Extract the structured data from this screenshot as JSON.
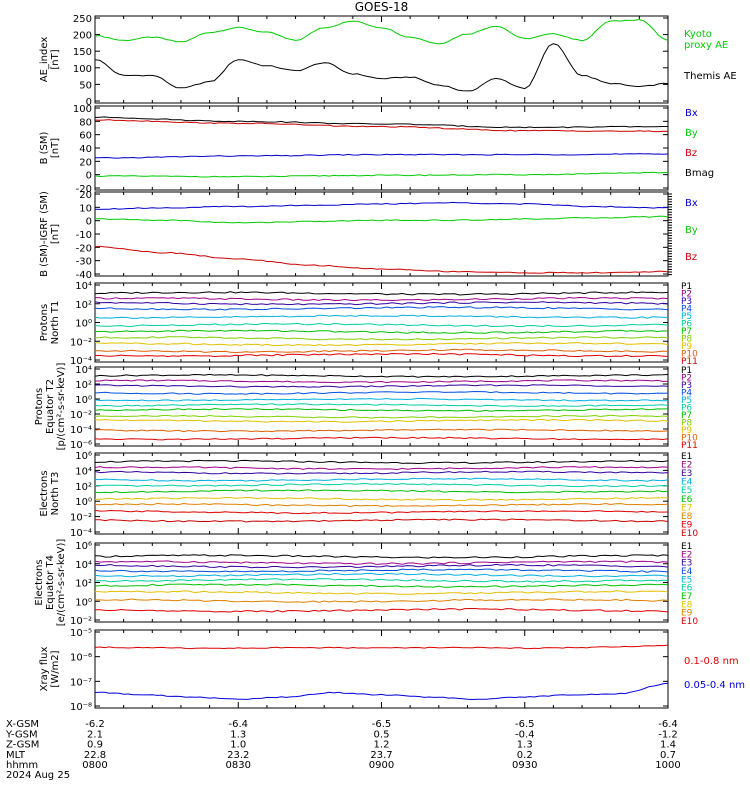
{
  "title": "GOES-18",
  "chart_data": [
    {
      "type": "line",
      "ylabel": [
        "AE_index",
        "[nT]"
      ],
      "yticks": [
        "250",
        "200",
        "150",
        "100",
        "50",
        "0"
      ],
      "ylim": [
        0,
        260
      ],
      "x": [
        "0800",
        "0806",
        "0812",
        "0818",
        "0824",
        "0830",
        "0836",
        "0842",
        "0848",
        "0854",
        "0900",
        "0906",
        "0912",
        "0918",
        "0924",
        "0930",
        "0936",
        "0942",
        "0948",
        "0954",
        "1000"
      ],
      "series": [
        {
          "name": "Kyoto proxy AE",
          "color": "#00cc00",
          "label_lines": [
            "Kyoto",
            "proxy AE"
          ],
          "values": [
            205,
            190,
            200,
            185,
            215,
            230,
            215,
            190,
            230,
            250,
            230,
            200,
            180,
            210,
            235,
            195,
            210,
            190,
            250,
            255,
            190
          ]
        },
        {
          "name": "Themis AE",
          "color": "#000000",
          "label_lines": [
            "Themis AE"
          ],
          "values": [
            130,
            80,
            80,
            40,
            60,
            130,
            110,
            95,
            120,
            85,
            70,
            75,
            50,
            30,
            70,
            40,
            180,
            80,
            55,
            45,
            55
          ]
        }
      ]
    },
    {
      "type": "line",
      "ylabel": [
        "B (SM)",
        "[nT]"
      ],
      "yticks": [
        "100",
        "80",
        "60",
        "40",
        "20",
        "0",
        "-20"
      ],
      "ylim": [
        -20,
        100
      ],
      "x": [
        "0800",
        "0830",
        "0900",
        "0930",
        "1000"
      ],
      "series": [
        {
          "name": "Bx",
          "color": "#0000cc",
          "values": [
            25,
            28,
            30,
            30,
            31
          ]
        },
        {
          "name": "By",
          "color": "#00cc00",
          "values": [
            -2,
            -3,
            -1,
            0,
            3
          ]
        },
        {
          "name": "Bz",
          "color": "#cc0000",
          "values": [
            82,
            77,
            72,
            66,
            65
          ]
        },
        {
          "name": "Bmag",
          "color": "#000000",
          "values": [
            86,
            80,
            76,
            71,
            72
          ]
        }
      ]
    },
    {
      "type": "line",
      "ylabel": [
        "B (SM)-IGRF (SM)",
        "[nT]"
      ],
      "yticks": [
        "20",
        "10",
        "0",
        "-10",
        "-20",
        "-30",
        "-40"
      ],
      "ylim": [
        -42,
        22
      ],
      "x": [
        "0800",
        "0815",
        "0830",
        "0845",
        "0900",
        "0915",
        "0930",
        "0945",
        "1000"
      ],
      "series": [
        {
          "name": "Bx",
          "color": "#0000cc",
          "values": [
            10,
            11,
            12,
            13,
            14,
            15,
            14,
            12,
            11
          ]
        },
        {
          "name": "By",
          "color": "#00cc00",
          "values": [
            2,
            1,
            -1,
            0,
            1,
            1,
            2,
            3,
            4
          ]
        },
        {
          "name": "Bz",
          "color": "#cc0000",
          "values": [
            -20,
            -25,
            -30,
            -35,
            -38,
            -40,
            -41,
            -41,
            -40
          ]
        }
      ]
    },
    {
      "type": "line",
      "scale": "log",
      "ylabel": [
        "Protons",
        "North T1"
      ],
      "yticks": [
        "10⁴",
        "10²",
        "10⁰",
        "10⁻²",
        "10⁻⁴"
      ],
      "ylim_exp": [
        -5,
        4
      ],
      "series": [
        {
          "name": "P1",
          "color": "#000000",
          "exp": 3.0
        },
        {
          "name": "P2",
          "color": "#a0008c",
          "exp": 2.3
        },
        {
          "name": "P3",
          "color": "#3000a0",
          "exp": 1.8
        },
        {
          "name": "P4",
          "color": "#0050e0",
          "exp": 1.2
        },
        {
          "name": "P5",
          "color": "#00b0e0",
          "exp": 0.2
        },
        {
          "name": "P6",
          "color": "#00d0a0",
          "exp": -0.8
        },
        {
          "name": "P7",
          "color": "#00c000",
          "exp": -1.6
        },
        {
          "name": "P8",
          "color": "#80d000",
          "exp": -2.4
        },
        {
          "name": "P9",
          "color": "#e0c000",
          "exp": -3.1
        },
        {
          "name": "P10",
          "color": "#e06000",
          "exp": -3.9
        },
        {
          "name": "P11",
          "color": "#e00000",
          "exp": -4.4
        }
      ]
    },
    {
      "type": "line",
      "scale": "log",
      "ylabel": [
        "Protons",
        "Equator T2",
        "[p/(cm²-s-sr-keV)]"
      ],
      "yticks": [
        "10⁴",
        "10²",
        "10⁰",
        "10⁻²",
        "10⁻⁴",
        "10⁻⁶"
      ],
      "ylim_exp": [
        -7,
        4
      ],
      "series": [
        {
          "name": "P1",
          "color": "#000000",
          "exp": 3.0
        },
        {
          "name": "P2",
          "color": "#a0008c",
          "exp": 2.2
        },
        {
          "name": "P3",
          "color": "#3000a0",
          "exp": 1.5
        },
        {
          "name": "P4",
          "color": "#0050e0",
          "exp": 0.5
        },
        {
          "name": "P5",
          "color": "#00b0e0",
          "exp": -0.5
        },
        {
          "name": "P6",
          "color": "#00d0a0",
          "exp": -1.3
        },
        {
          "name": "P7",
          "color": "#00c000",
          "exp": -2.0
        },
        {
          "name": "P8",
          "color": "#80d000",
          "exp": -3.0
        },
        {
          "name": "P9",
          "color": "#e0c000",
          "exp": -3.6
        },
        {
          "name": "P10",
          "color": "#e06000",
          "exp": -5.0
        },
        {
          "name": "P11",
          "color": "#e00000",
          "exp": -6.2
        }
      ]
    },
    {
      "type": "line",
      "scale": "log",
      "ylabel": [
        "Electrons",
        "North T3"
      ],
      "yticks": [
        "10⁶",
        "10⁴",
        "10²",
        "10⁰",
        "10⁻²",
        "10⁻⁴"
      ],
      "ylim_exp": [
        -4,
        6
      ],
      "series": [
        {
          "name": "E1",
          "color": "#000000",
          "exp": 5.1
        },
        {
          "name": "E2",
          "color": "#a0008c",
          "exp": 4.3
        },
        {
          "name": "E3",
          "color": "#3000a0",
          "exp": 3.7
        },
        {
          "name": "E4",
          "color": "#00b0e0",
          "exp": 2.8
        },
        {
          "name": "E5",
          "color": "#00d0a0",
          "exp": 2.1
        },
        {
          "name": "E6",
          "color": "#00c000",
          "exp": 1.3
        },
        {
          "name": "E7",
          "color": "#e0c000",
          "exp": 0.3
        },
        {
          "name": "E8",
          "color": "#e08000",
          "exp": -0.5
        },
        {
          "name": "E9",
          "color": "#e00000",
          "exp": -1.4
        },
        {
          "name": "E10",
          "color": "#cc0000",
          "exp": -2.5
        }
      ]
    },
    {
      "type": "line",
      "scale": "log",
      "ylabel": [
        "Electrons",
        "Equator T4",
        "[e/(cm²-s-sr-keV)]"
      ],
      "yticks": [
        "10⁶",
        "10⁴",
        "10²",
        "10⁰",
        "10⁻²"
      ],
      "ylim_exp": [
        -2.5,
        6
      ],
      "series": [
        {
          "name": "E1",
          "color": "#000000",
          "exp": 4.7
        },
        {
          "name": "E2",
          "color": "#a0008c",
          "exp": 4.0
        },
        {
          "name": "E3",
          "color": "#3000a0",
          "exp": 3.6
        },
        {
          "name": "E4",
          "color": "#0050e0",
          "exp": 3.1
        },
        {
          "name": "E5",
          "color": "#00b0e0",
          "exp": 2.6
        },
        {
          "name": "E6",
          "color": "#00d0a0",
          "exp": 2.0
        },
        {
          "name": "E7",
          "color": "#00c000",
          "exp": 1.4
        },
        {
          "name": "E8",
          "color": "#e0c000",
          "exp": 0.6
        },
        {
          "name": "E9",
          "color": "#e08000",
          "exp": -0.3
        },
        {
          "name": "E10",
          "color": "#e00000",
          "exp": -1.4
        }
      ]
    },
    {
      "type": "line",
      "scale": "log",
      "ylabel": [
        "Xray flux",
        "[W/m2]"
      ],
      "yticks": [
        "10⁻⁵",
        "10⁻⁶",
        "10⁻⁷",
        "10⁻⁸"
      ],
      "ylim_exp": [
        -8.3,
        -5
      ],
      "x": [
        "0800",
        "0810",
        "0820",
        "0830",
        "0840",
        "0850",
        "0900",
        "0910",
        "0920",
        "0930",
        "0940",
        "0950",
        "1000"
      ],
      "series": [
        {
          "name": "0.1-0.8 nm",
          "color": "#dd0000",
          "label_lines": [
            "0.1-0.8 nm"
          ],
          "values": [
            -5.68,
            -5.7,
            -5.72,
            -5.72,
            -5.7,
            -5.7,
            -5.71,
            -5.7,
            -5.7,
            -5.72,
            -5.7,
            -5.66,
            -5.6
          ]
        },
        {
          "name": "0.05-0.4 nm",
          "color": "#0000dd",
          "label_lines": [
            "0.05-0.4 nm"
          ],
          "values": [
            -7.7,
            -7.8,
            -7.9,
            -8.0,
            -7.9,
            -7.7,
            -7.8,
            -7.9,
            -8.0,
            -7.9,
            -7.8,
            -7.75,
            -7.3
          ]
        }
      ]
    }
  ],
  "xaxis": {
    "tick_labels_hhmm": [
      "0800",
      "0830",
      "0900",
      "0930",
      "1000"
    ],
    "rows": [
      {
        "name": "X-GSM",
        "values": [
          "-6.2",
          "-6.4",
          "-6.5",
          "-6.5",
          "-6.4"
        ]
      },
      {
        "name": "Y-GSM",
        "values": [
          "2.1",
          "1.3",
          "0.5",
          "-0.4",
          "-1.2"
        ]
      },
      {
        "name": "Z-GSM",
        "values": [
          "0.9",
          "1.0",
          "1.2",
          "1.3",
          "1.4"
        ]
      },
      {
        "name": "MLT",
        "values": [
          "22.8",
          "23.2",
          "23.7",
          "0.2",
          "0.7"
        ]
      },
      {
        "name": "hhmm",
        "values": [
          "0800",
          "0830",
          "0900",
          "0930",
          "1000"
        ]
      }
    ],
    "date": "2024 Aug 25"
  }
}
